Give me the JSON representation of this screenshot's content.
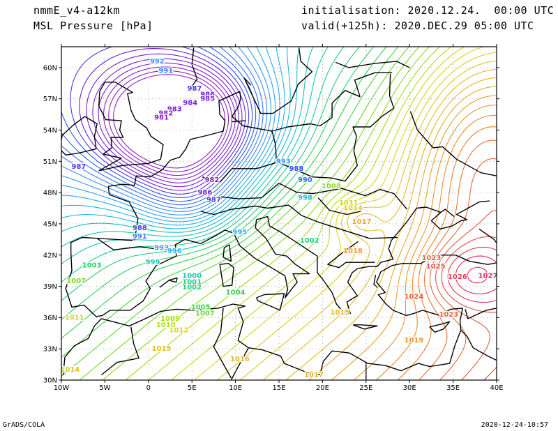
{
  "header": {
    "model": "nmmE_v4-a12km",
    "field": "MSL Pressure [hPa]",
    "init_label": "initialisation:",
    "init_value": "2020.12.24.  00:00 UTC",
    "valid_label": "valid(+125h):",
    "valid_value": "2020.DEC.29 05:00 UTC"
  },
  "footer": {
    "left": "GrADS/COLA",
    "right": "2020-12-24-10:57"
  },
  "map": {
    "lon_range": [
      -10,
      40
    ],
    "lat_range": [
      30,
      62
    ],
    "lon_ticks": [
      {
        "lon": -10,
        "label": "10W"
      },
      {
        "lon": -5,
        "label": "5W"
      },
      {
        "lon": 0,
        "label": "0"
      },
      {
        "lon": 5,
        "label": "5E"
      },
      {
        "lon": 10,
        "label": "10E"
      },
      {
        "lon": 15,
        "label": "15E"
      },
      {
        "lon": 20,
        "label": "20E"
      },
      {
        "lon": 25,
        "label": "25E"
      },
      {
        "lon": 30,
        "label": "30E"
      },
      {
        "lon": 35,
        "label": "35E"
      },
      {
        "lon": 40,
        "label": "40E"
      }
    ],
    "lat_ticks": [
      {
        "lat": 30,
        "label": "30N"
      },
      {
        "lat": 33,
        "label": "33N"
      },
      {
        "lat": 36,
        "label": "36N"
      },
      {
        "lat": 39,
        "label": "39N"
      },
      {
        "lat": 42,
        "label": "42N"
      },
      {
        "lat": 45,
        "label": "45N"
      },
      {
        "lat": 48,
        "label": "48N"
      },
      {
        "lat": 51,
        "label": "51N"
      },
      {
        "lat": 54,
        "label": "54N"
      },
      {
        "lat": 57,
        "label": "57N"
      },
      {
        "lat": 60,
        "label": "60N"
      }
    ],
    "pressure_systems": [
      {
        "type": "low",
        "lon": 3.5,
        "lat": 54.5,
        "value": 981
      },
      {
        "type": "high",
        "lon": 36.5,
        "lat": 40.0,
        "value": 1027
      }
    ],
    "isobar_labels": [
      {
        "text": "992",
        "lon": 1.0,
        "lat": 60.6
      },
      {
        "text": "991",
        "lon": 2.0,
        "lat": 59.7
      },
      {
        "text": "987",
        "lon": 5.3,
        "lat": 58.0
      },
      {
        "text": "986",
        "lon": 6.8,
        "lat": 57.4
      },
      {
        "text": "985",
        "lon": 6.8,
        "lat": 57.0
      },
      {
        "text": "984",
        "lon": 4.8,
        "lat": 56.6
      },
      {
        "text": "983",
        "lon": 3.0,
        "lat": 56.0
      },
      {
        "text": "982",
        "lon": 2.0,
        "lat": 55.6
      },
      {
        "text": "981",
        "lon": 1.5,
        "lat": 55.2
      },
      {
        "text": "987",
        "lon": -8.0,
        "lat": 50.5
      },
      {
        "text": "982",
        "lon": 7.3,
        "lat": 49.2
      },
      {
        "text": "988",
        "lon": 17.0,
        "lat": 50.3
      },
      {
        "text": "990",
        "lon": 18.0,
        "lat": 49.2
      },
      {
        "text": "993",
        "lon": 15.5,
        "lat": 51.0
      },
      {
        "text": "986",
        "lon": 6.5,
        "lat": 48.0
      },
      {
        "text": "987",
        "lon": 7.5,
        "lat": 47.3
      },
      {
        "text": "998",
        "lon": 18.0,
        "lat": 47.5
      },
      {
        "text": "1008",
        "lon": 21.0,
        "lat": 48.6
      },
      {
        "text": "1011",
        "lon": 23.0,
        "lat": 47.0
      },
      {
        "text": "1014",
        "lon": 23.5,
        "lat": 46.5
      },
      {
        "text": "1017",
        "lon": 24.5,
        "lat": 45.2
      },
      {
        "text": "988",
        "lon": -1.0,
        "lat": 44.6
      },
      {
        "text": "991",
        "lon": -1.0,
        "lat": 43.8
      },
      {
        "text": "995",
        "lon": 10.5,
        "lat": 44.2
      },
      {
        "text": "993",
        "lon": 1.5,
        "lat": 42.7
      },
      {
        "text": "996",
        "lon": 3.0,
        "lat": 42.4
      },
      {
        "text": "999",
        "lon": 0.5,
        "lat": 41.3
      },
      {
        "text": "1002",
        "lon": 18.5,
        "lat": 43.4
      },
      {
        "text": "1003",
        "lon": -6.5,
        "lat": 41.0
      },
      {
        "text": "1007",
        "lon": -8.3,
        "lat": 39.5
      },
      {
        "text": "1000",
        "lon": 5.0,
        "lat": 40.0
      },
      {
        "text": "1001",
        "lon": 5.0,
        "lat": 39.4
      },
      {
        "text": "1002",
        "lon": 5.0,
        "lat": 38.9
      },
      {
        "text": "1004",
        "lon": 10.0,
        "lat": 38.4
      },
      {
        "text": "1005",
        "lon": 6.0,
        "lat": 37.0
      },
      {
        "text": "1007",
        "lon": 6.5,
        "lat": 36.4
      },
      {
        "text": "1009",
        "lon": 2.5,
        "lat": 35.9
      },
      {
        "text": "1010",
        "lon": 2.0,
        "lat": 35.3
      },
      {
        "text": "1012",
        "lon": 3.5,
        "lat": 34.8
      },
      {
        "text": "1011",
        "lon": -8.5,
        "lat": 36.0
      },
      {
        "text": "1014",
        "lon": -9.0,
        "lat": 31.0
      },
      {
        "text": "1015",
        "lon": 22.0,
        "lat": 36.5
      },
      {
        "text": "1018",
        "lon": 23.5,
        "lat": 42.4
      },
      {
        "text": "1019",
        "lon": 30.5,
        "lat": 33.8
      },
      {
        "text": "1015",
        "lon": 1.5,
        "lat": 33.0
      },
      {
        "text": "1016",
        "lon": 10.5,
        "lat": 32.0
      },
      {
        "text": "1017",
        "lon": 19.0,
        "lat": 30.5
      },
      {
        "text": "1023",
        "lon": 32.5,
        "lat": 41.7
      },
      {
        "text": "1025",
        "lon": 33.0,
        "lat": 40.9
      },
      {
        "text": "1026",
        "lon": 35.5,
        "lat": 39.9
      },
      {
        "text": "1027",
        "lon": 39.0,
        "lat": 40.0
      },
      {
        "text": "1024",
        "lon": 30.5,
        "lat": 38.0
      },
      {
        "text": "1023",
        "lon": 34.5,
        "lat": 36.3
      }
    ]
  },
  "colors": {
    "frame": "#000000",
    "coast": "#000000",
    "grid": "#9a9a9a",
    "isobar_scale": [
      {
        "p": 981,
        "color": "#8a1ec8"
      },
      {
        "p": 986,
        "color": "#6a1ee0"
      },
      {
        "p": 988,
        "color": "#2a50f0"
      },
      {
        "p": 992,
        "color": "#3a8cff"
      },
      {
        "p": 996,
        "color": "#19b4e6"
      },
      {
        "p": 1000,
        "color": "#14c8a6"
      },
      {
        "p": 1004,
        "color": "#30d24a"
      },
      {
        "p": 1008,
        "color": "#8cdc1c"
      },
      {
        "p": 1012,
        "color": "#d7d71c"
      },
      {
        "p": 1016,
        "color": "#e6b428"
      },
      {
        "p": 1020,
        "color": "#ec8c28"
      },
      {
        "p": 1024,
        "color": "#e65a3a"
      },
      {
        "p": 1027,
        "color": "#e0285a"
      }
    ]
  }
}
